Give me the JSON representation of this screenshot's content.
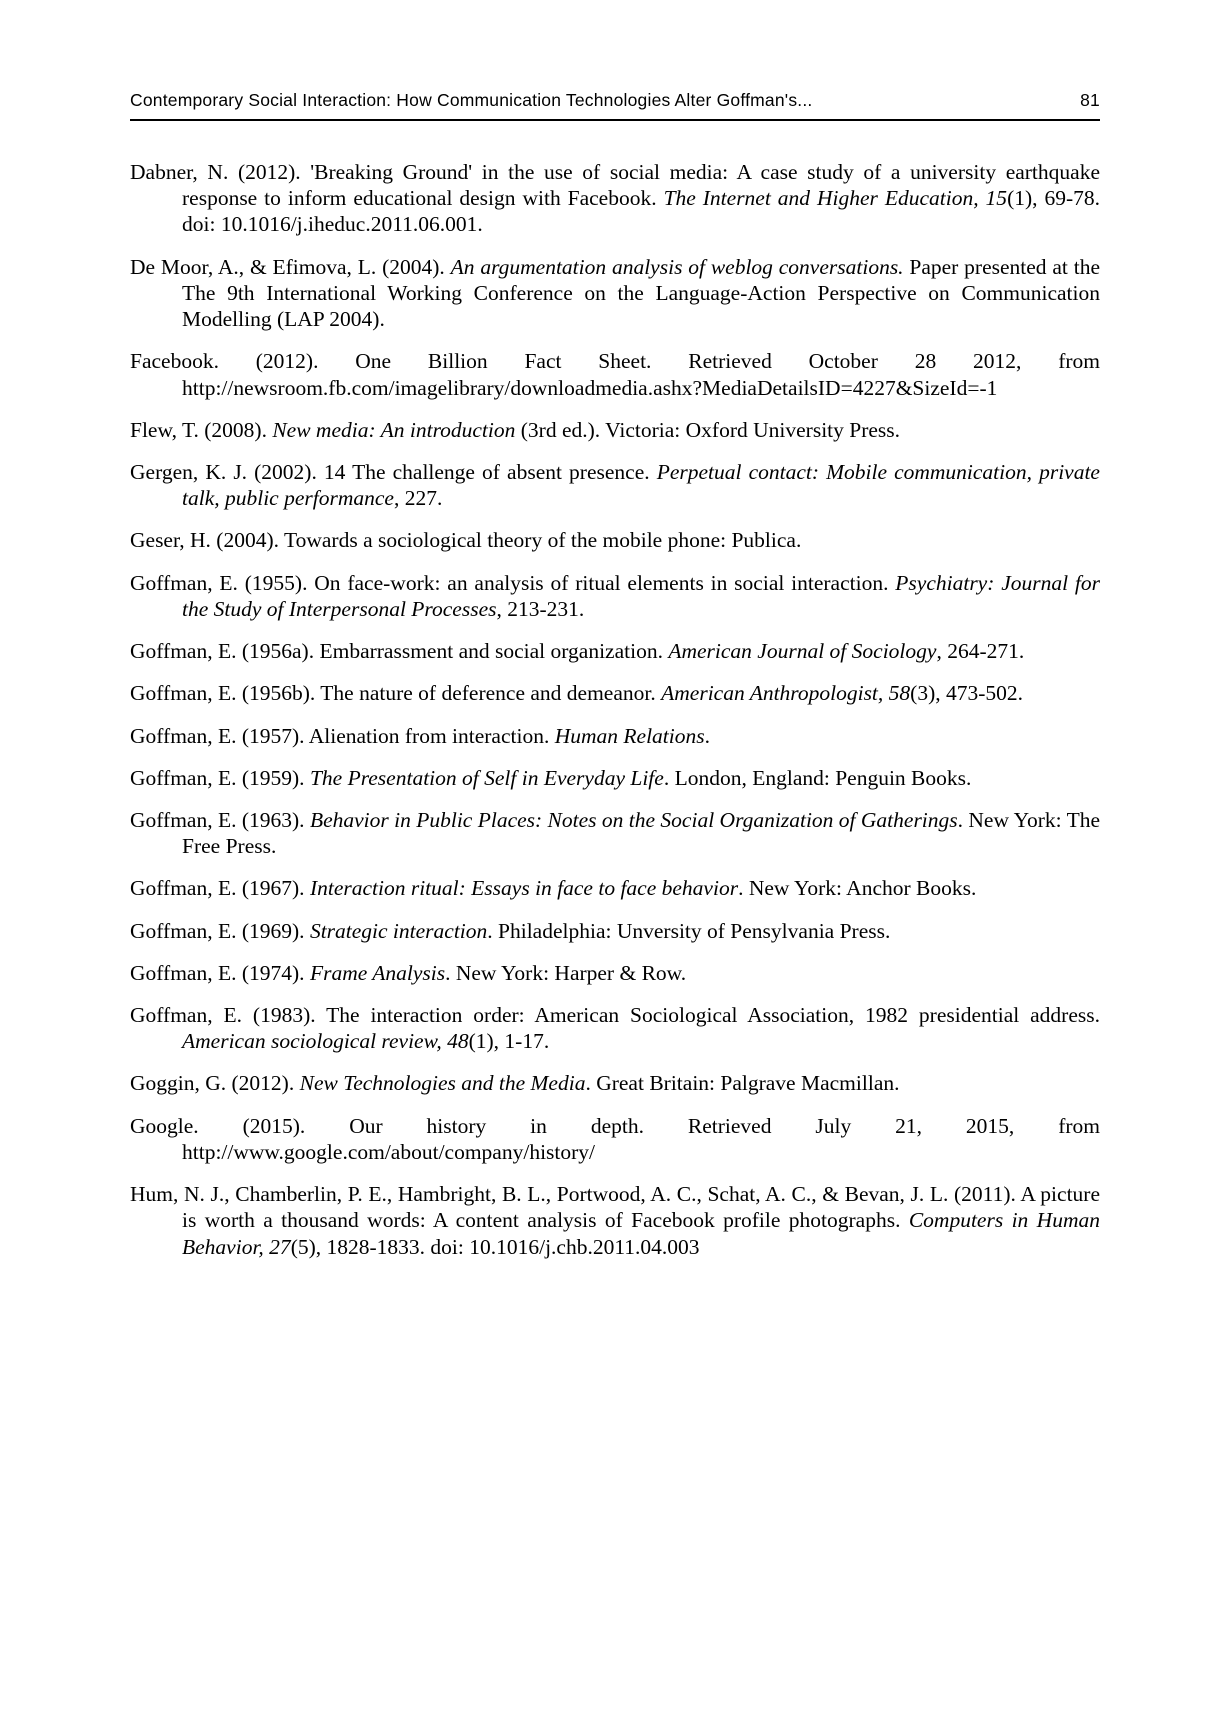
{
  "header": {
    "running_title": "Contemporary Social Interaction:  How Communication Technologies Alter Goffman's...",
    "page_number": "81"
  },
  "references": [
    "Dabner, N. (2012). 'Breaking Ground' in the use of social media: A case study of a university earthquake response to inform educational design with Facebook. <i>The Internet and Higher Education, 15</i>(1), 69-78. doi: 10.1016/j.iheduc.2011.06.001.",
    "De Moor, A., & Efimova, L. (2004). <i>An argumentation analysis of weblog conversations.</i> Paper presented at the The 9th International Working Conference on the Language-Action Perspective on Communication Modelling (LAP 2004).",
    "Facebook. (2012). One Billion Fact Sheet. Retrieved October 28 2012, from http://newsroom.fb.com/imagelibrary/downloadmedia.ashx?MediaDetailsID=4227&SizeId=-1",
    "Flew, T. (2008). <i>New media: An introduction</i> (3rd ed.). Victoria: Oxford University Press.",
    "Gergen, K. J. (2002). 14 The challenge of absent presence. <i>Perpetual contact: Mobile communication, private talk, public performance</i>, 227.",
    "Geser, H. (2004). Towards a sociological theory of the mobile phone: Publica.",
    "Goffman, E. (1955). On face-work: an analysis of ritual elements in social interaction. <i>Psychiatry: Journal for the Study of Interpersonal Processes</i>, 213-231.",
    "Goffman, E. (1956a). Embarrassment and social organization. <i>American Journal of Sociology</i>, 264-271.",
    "Goffman, E. (1956b). The nature of deference and demeanor. <i>American Anthropologist, 58</i>(3), 473-502.",
    "Goffman, E. (1957). Alienation from interaction. <i>Human Relations</i>.",
    "Goffman, E. (1959). <i>The Presentation of Self in Everyday Life</i>. London, England: Penguin Books.",
    "Goffman, E. (1963). <i>Behavior in Public Places: Notes on the Social Organization of Gatherings</i>. New York: The Free Press.",
    "Goffman, E. (1967). <i>Interaction ritual: Essays in face to face behavior</i>. New York: Anchor Books.",
    "Goffman, E. (1969). <i>Strategic interaction</i>. Philadelphia: Unversity of Pensylvania Press.",
    "Goffman, E. (1974). <i>Frame Analysis</i>. New York: Harper & Row.",
    "Goffman, E. (1983). The interaction order: American Sociological Association, 1982 presidential address. <i>American sociological review, 48</i>(1), 1-17.",
    "Goggin, G. (2012). <i>New Technologies and the Media</i>. Great Britain: Palgrave Macmillan.",
    "Google. (2015). Our history in depth.  Retrieved July 21, 2015, from http://www.google.com/about/company/history/",
    "Hum, N. J., Chamberlin, P. E., Hambright, B. L., Portwood, A. C., Schat, A. C., & Bevan, J. L. (2011). A picture is worth a thousand words: A content analysis of Facebook profile photographs. <i>Computers in Human Behavior, 27</i>(5), 1828-1833. doi: 10.1016/j.chb.2011.04.003"
  ]
}
